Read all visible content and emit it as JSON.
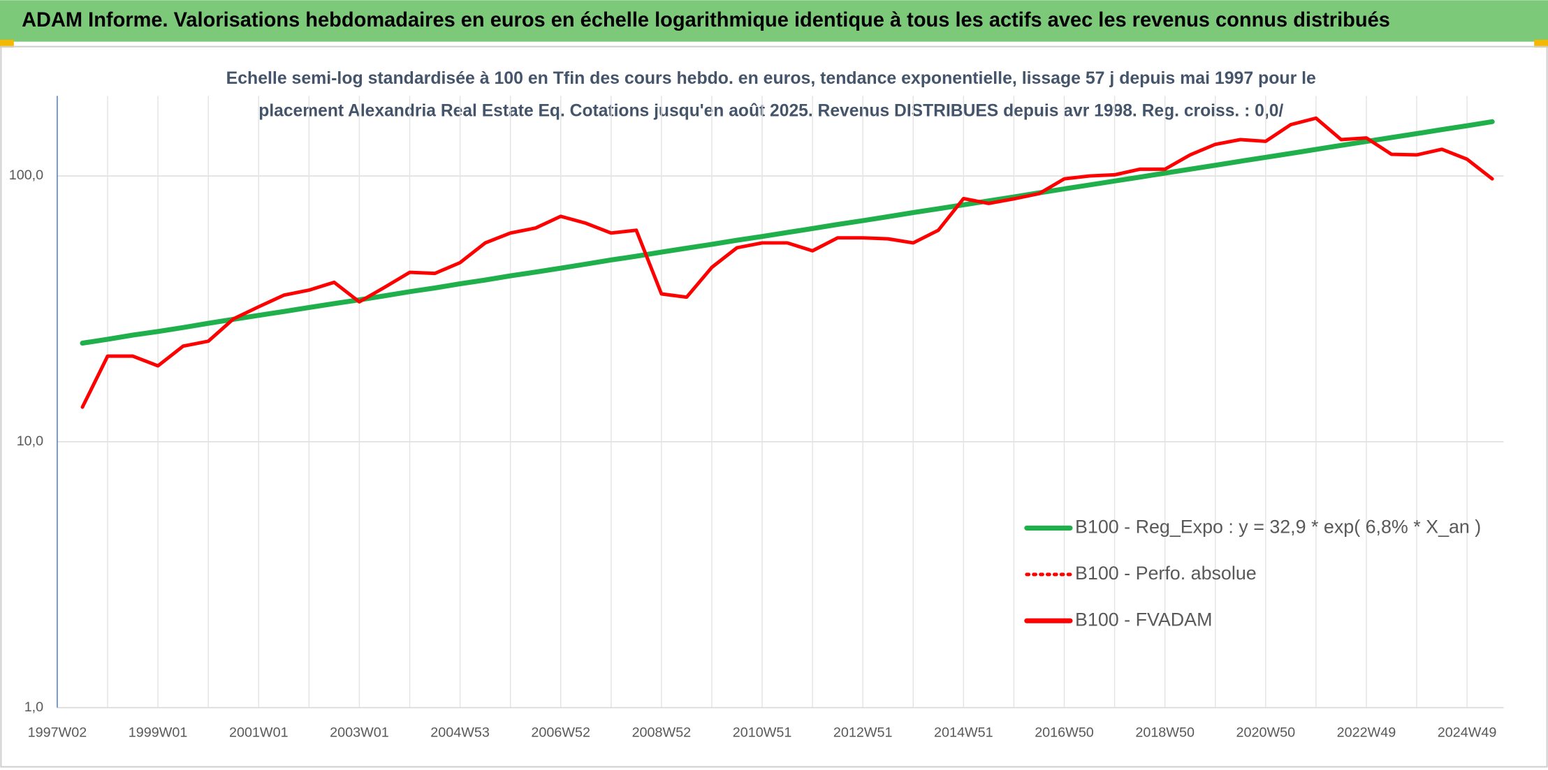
{
  "chart_data": {
    "type": "line",
    "title": "ADAM Informe. Valorisations hebdomadaires en euros en échelle logarithmique identique à tous les actifs avec les revenus connus distribués",
    "subtitle": [
      "Echelle semi-log standardisée à 100 en Tfin des cours hebdo. en euros, tendance exponentielle, lissage 57 j depuis mai 1997 pour le",
      "placement Alexandria Real Estate Eq. Cotations jusqu'en août 2025. Revenus DISTRIBUES depuis avr 1998. Reg. croiss. : 0,0/"
    ],
    "categories": [
      "1997W02",
      null,
      null,
      null,
      "1999W01",
      null,
      null,
      null,
      "2001W01",
      null,
      null,
      null,
      "2003W01",
      null,
      null,
      null,
      "2004W53",
      null,
      null,
      null,
      "2006W52",
      null,
      null,
      null,
      "2008W52",
      null,
      null,
      null,
      "2010W51",
      null,
      null,
      null,
      "2012W51",
      null,
      null,
      null,
      "2014W51",
      null,
      null,
      null,
      "2016W50",
      null,
      null,
      null,
      "2018W50",
      null,
      null,
      null,
      "2020W50",
      null,
      null,
      null,
      "2022W49",
      null,
      null,
      null,
      "2024W49",
      null
    ],
    "series": [
      {
        "name": "B100 - Reg_Expo : y = 32,9 * exp( 6,8% *  X_an )",
        "color": "#1fb04c",
        "style": "solid",
        "values": [
          null,
          23.5,
          24.3,
          25.2,
          26.0,
          26.9,
          27.9,
          28.9,
          29.9,
          30.9,
          32.0,
          33.1,
          34.2,
          35.4,
          36.7,
          37.9,
          39.3,
          40.6,
          42.1,
          43.5,
          45.0,
          46.6,
          48.3,
          49.9,
          51.7,
          53.5,
          55.3,
          57.3,
          59.2,
          61.3,
          63.4,
          65.7,
          67.9,
          70.3,
          72.8,
          75.3,
          77.9,
          80.6,
          83.4,
          86.4,
          89.4,
          92.5,
          95.7,
          99.0,
          102.5,
          106.0,
          109.7,
          113.6,
          117.5,
          121.6,
          125.9,
          130.3,
          134.8,
          139.5,
          144.3,
          149.4,
          154.5,
          160.0
        ]
      },
      {
        "name": "B100 - Perfo. absolue",
        "color": "#ff0000",
        "style": "dotted",
        "values": [
          null,
          null,
          null,
          null,
          null,
          null,
          null,
          null,
          null,
          null,
          null,
          null,
          null,
          null,
          null,
          null,
          null,
          null,
          null,
          null,
          null,
          null,
          null,
          null,
          null,
          null,
          null,
          null,
          null,
          null,
          null,
          null,
          null,
          null,
          null,
          null,
          null,
          null,
          null,
          null,
          null,
          null,
          null,
          null,
          null,
          null,
          null,
          null,
          null,
          null,
          null,
          null,
          null,
          null,
          null,
          null,
          null,
          null
        ]
      },
      {
        "name": "B100 - FVADAM",
        "color": "#ff0000",
        "style": "solid",
        "values": [
          null,
          13.5,
          21,
          21,
          19.3,
          22.9,
          23.9,
          29,
          32.2,
          35.6,
          37.2,
          39.8,
          33.6,
          38.1,
          43.4,
          43,
          47.2,
          56,
          61,
          63.7,
          70.5,
          66.4,
          61,
          62.5,
          36,
          35,
          45.3,
          53.7,
          56,
          56,
          52.3,
          58.5,
          58.5,
          58,
          56,
          62.5,
          82.2,
          78.8,
          82,
          85.8,
          97.5,
          100,
          101,
          106,
          106,
          120,
          131.5,
          137,
          135,
          156,
          165,
          137,
          139,
          120.6,
          120,
          126,
          115.6,
          97.5
        ]
      }
    ],
    "log_scale": true,
    "ylim": [
      1,
      200
    ],
    "yticks": [
      {
        "value": 1,
        "label": "1,0"
      },
      {
        "value": 10,
        "label": "10,0"
      },
      {
        "value": 100,
        "label": "100,0"
      }
    ],
    "grid": true,
    "legend_position": "center-right"
  }
}
